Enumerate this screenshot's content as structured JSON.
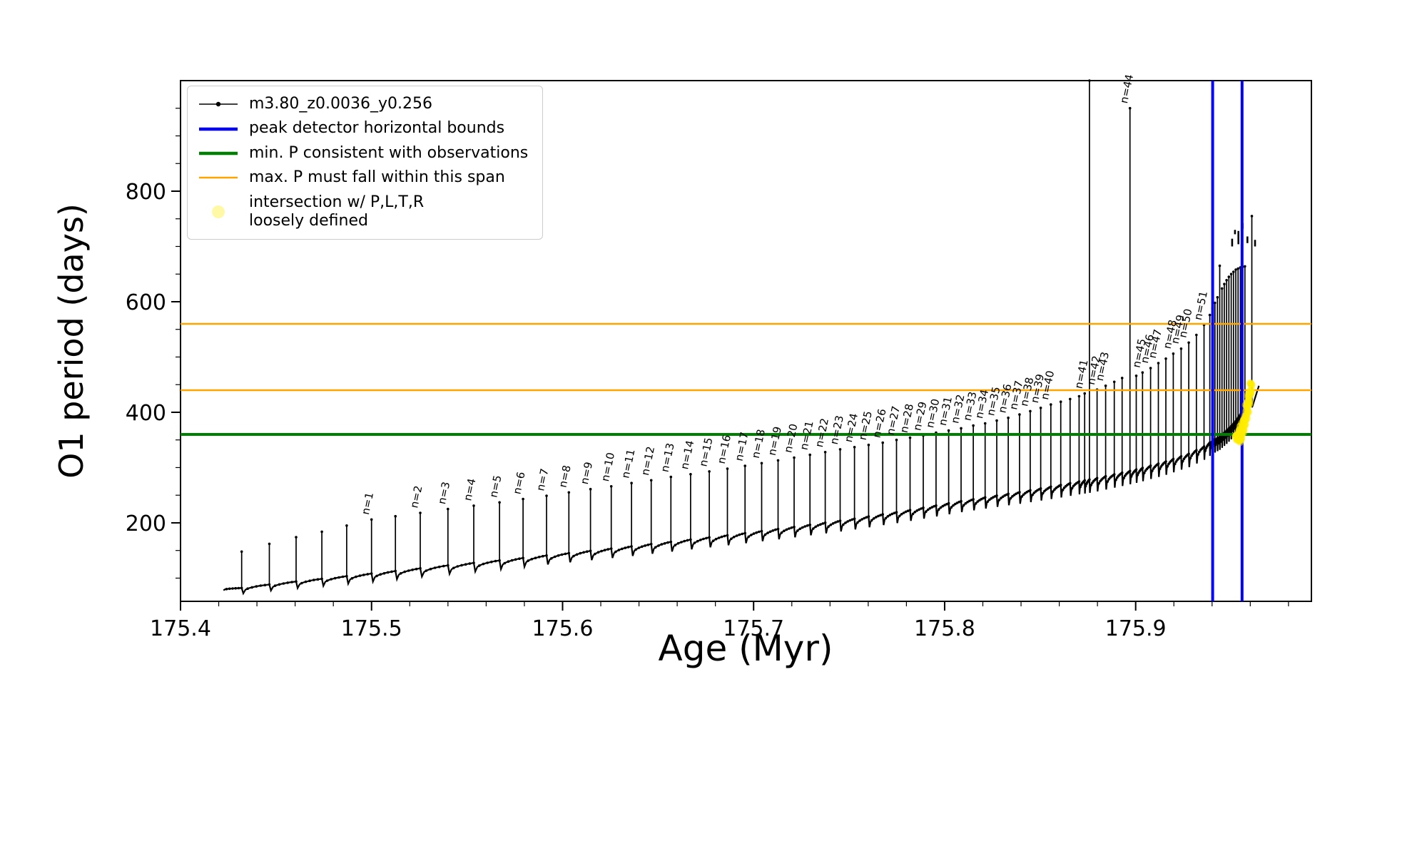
{
  "chart_data": {
    "type": "line",
    "title": "",
    "xlabel": "Age (Myr)",
    "ylabel": "O1 period (days)",
    "xlim": [
      175.4,
      175.992
    ],
    "ylim": [
      58,
      1000
    ],
    "xticks": [
      175.4,
      175.5,
      175.6,
      175.7,
      175.8,
      175.9
    ],
    "xtick_labels": [
      "175.4",
      "175.5",
      "175.6",
      "175.7",
      "175.8",
      "175.9"
    ],
    "yticks": [
      200,
      400,
      600,
      800
    ],
    "ytick_labels": [
      "200",
      "400",
      "600",
      "800"
    ],
    "x_minor_step": 0.02,
    "y_minor_step": 50,
    "grid": false,
    "legend_position": "upper left",
    "colors": {
      "track": "#000000",
      "bounds": "#0000ff",
      "min_p": "#008000",
      "max_p": "#ffa500",
      "intersection": "#ffee00"
    },
    "legend": {
      "entries": [
        {
          "label": "m3.80_z0.0036_y0.256",
          "color": "#000000",
          "style": "line-marker"
        },
        {
          "label": "peak detector horizontal bounds",
          "color": "#0000ff",
          "style": "line-thick"
        },
        {
          "label": "min. P consistent with observations",
          "color": "#008000",
          "style": "line-thick"
        },
        {
          "label": "max. P must fall within this span",
          "color": "#ffa500",
          "style": "line"
        },
        {
          "label": "intersection w/ P,L,T,R\nloosely defined",
          "color": "#ffee00",
          "style": "marker"
        }
      ]
    },
    "hlines": [
      {
        "y": 360,
        "color": "#008000",
        "width": 4,
        "name": "min-P-line"
      },
      {
        "y": 440,
        "color": "#ffa500",
        "width": 2.5,
        "name": "max-P-span-lower"
      },
      {
        "y": 560,
        "color": "#ffa500",
        "width": 2.5,
        "name": "max-P-span-upper"
      }
    ],
    "vlines": [
      {
        "x": 175.9403,
        "color": "#0000ff",
        "width": 4,
        "name": "peak-bound-left"
      },
      {
        "x": 175.9557,
        "color": "#0000ff",
        "width": 4,
        "name": "peak-bound-right"
      }
    ],
    "data_start": 175.4225,
    "data_end": 175.9645,
    "baseline": [
      [
        175.4225,
        78
      ],
      [
        175.45,
        90
      ],
      [
        175.48,
        101
      ],
      [
        175.51,
        112
      ],
      [
        175.54,
        123
      ],
      [
        175.57,
        133
      ],
      [
        175.6,
        144
      ],
      [
        175.63,
        155
      ],
      [
        175.66,
        167
      ],
      [
        175.69,
        179
      ],
      [
        175.72,
        192
      ],
      [
        175.75,
        206
      ],
      [
        175.78,
        222
      ],
      [
        175.81,
        240
      ],
      [
        175.84,
        256
      ],
      [
        175.86,
        268
      ],
      [
        175.88,
        281
      ],
      [
        175.9,
        296
      ],
      [
        175.915,
        310
      ],
      [
        175.928,
        325
      ],
      [
        175.9358,
        338
      ],
      [
        175.94,
        348
      ],
      [
        175.944,
        356
      ],
      [
        175.948,
        368
      ],
      [
        175.952,
        382
      ],
      [
        175.956,
        402
      ],
      [
        175.959,
        422
      ],
      [
        175.962,
        440
      ],
      [
        175.9645,
        448
      ]
    ],
    "spikes": [
      [
        175.432,
        148,
        ""
      ],
      [
        175.4465,
        162,
        ""
      ],
      [
        175.4605,
        174,
        ""
      ],
      [
        175.474,
        184,
        ""
      ],
      [
        175.487,
        195,
        ""
      ],
      [
        175.5,
        206,
        "n=1"
      ],
      [
        175.5125,
        212,
        ""
      ],
      [
        175.5255,
        218,
        "n=2"
      ],
      [
        175.54,
        225,
        "n=3"
      ],
      [
        175.5535,
        231,
        "n=4"
      ],
      [
        175.567,
        237,
        "n=5"
      ],
      [
        175.5793,
        243,
        "n=6"
      ],
      [
        175.5916,
        249,
        "n=7"
      ],
      [
        175.6033,
        255,
        "n=8"
      ],
      [
        175.6146,
        261,
        "n=9"
      ],
      [
        175.6255,
        266,
        "n=10"
      ],
      [
        175.6361,
        272,
        "n=11"
      ],
      [
        175.6464,
        277,
        "n=12"
      ],
      [
        175.6567,
        283,
        "n=13"
      ],
      [
        175.667,
        288,
        "n=14"
      ],
      [
        175.6768,
        293,
        "n=15"
      ],
      [
        175.6863,
        298,
        "n=16"
      ],
      [
        175.6955,
        303,
        "n=17"
      ],
      [
        175.7042,
        308,
        "n=18"
      ],
      [
        175.7128,
        313,
        "n=19"
      ],
      [
        175.7212,
        318,
        "n=20"
      ],
      [
        175.7295,
        323,
        "n=21"
      ],
      [
        175.7375,
        328,
        "n=22"
      ],
      [
        175.7453,
        333,
        "n=23"
      ],
      [
        175.7528,
        337,
        "n=24"
      ],
      [
        175.7602,
        341,
        "n=25"
      ],
      [
        175.7676,
        345,
        "n=26"
      ],
      [
        175.7748,
        350,
        "n=27"
      ],
      [
        175.7819,
        354,
        "n=28"
      ],
      [
        175.7888,
        358,
        "n=29"
      ],
      [
        175.7955,
        363,
        "n=30"
      ],
      [
        175.8021,
        367,
        "n=31"
      ],
      [
        175.8086,
        371,
        "n=32"
      ],
      [
        175.815,
        376,
        "n=33"
      ],
      [
        175.8212,
        380,
        "n=34"
      ],
      [
        175.8273,
        385,
        "n=35"
      ],
      [
        175.8333,
        390,
        "n=36"
      ],
      [
        175.8392,
        396,
        "n=37"
      ],
      [
        175.8448,
        402,
        "n=38"
      ],
      [
        175.8503,
        408,
        "n=39"
      ],
      [
        175.8556,
        414,
        "n=40"
      ],
      [
        175.8608,
        419,
        ""
      ],
      [
        175.8657,
        424,
        ""
      ],
      [
        175.8704,
        429,
        ""
      ],
      [
        175.8733,
        434,
        "n=41"
      ],
      [
        175.8758,
        1000,
        ""
      ],
      [
        175.8798,
        441,
        "n=42"
      ],
      [
        175.8843,
        448,
        "n=43"
      ],
      [
        175.8888,
        455,
        ""
      ],
      [
        175.8929,
        462,
        ""
      ],
      [
        175.897,
        950,
        "n=44"
      ],
      [
        175.9003,
        466,
        ""
      ],
      [
        175.9036,
        472,
        "n=45"
      ],
      [
        175.9078,
        480,
        "n=46"
      ],
      [
        175.9119,
        489,
        "n=47"
      ],
      [
        175.9158,
        497,
        ""
      ],
      [
        175.9197,
        506,
        "n=48"
      ],
      [
        175.9238,
        515,
        "n=49"
      ],
      [
        175.9278,
        526,
        "n=50"
      ],
      [
        175.9318,
        540,
        ""
      ],
      [
        175.9358,
        558,
        "n=51"
      ],
      [
        175.9388,
        576,
        ""
      ],
      [
        175.9402,
        588,
        ""
      ],
      [
        175.9415,
        598,
        ""
      ],
      [
        175.9428,
        608,
        ""
      ],
      [
        175.944,
        665,
        ""
      ],
      [
        175.9452,
        624,
        ""
      ],
      [
        175.9464,
        632,
        ""
      ],
      [
        175.9476,
        639,
        ""
      ],
      [
        175.9488,
        645,
        ""
      ],
      [
        175.95,
        650,
        ""
      ],
      [
        175.9512,
        654,
        ""
      ],
      [
        175.9524,
        658,
        ""
      ],
      [
        175.9536,
        660,
        ""
      ],
      [
        175.9548,
        662,
        ""
      ],
      [
        175.956,
        663,
        ""
      ],
      [
        175.9572,
        664,
        ""
      ],
      [
        175.9608,
        755,
        ""
      ]
    ],
    "dashes": [
      [
        175.9505,
        700,
        714
      ],
      [
        175.952,
        722,
        730
      ],
      [
        175.9538,
        704,
        728
      ],
      [
        175.956,
        732,
        742
      ],
      [
        175.9585,
        706,
        718
      ],
      [
        175.9625,
        700,
        712
      ]
    ],
    "intersection_blob": {
      "age_start": 175.9535,
      "age_end": 175.9605,
      "p_start": 352,
      "p_end": 450,
      "count": 170
    }
  }
}
